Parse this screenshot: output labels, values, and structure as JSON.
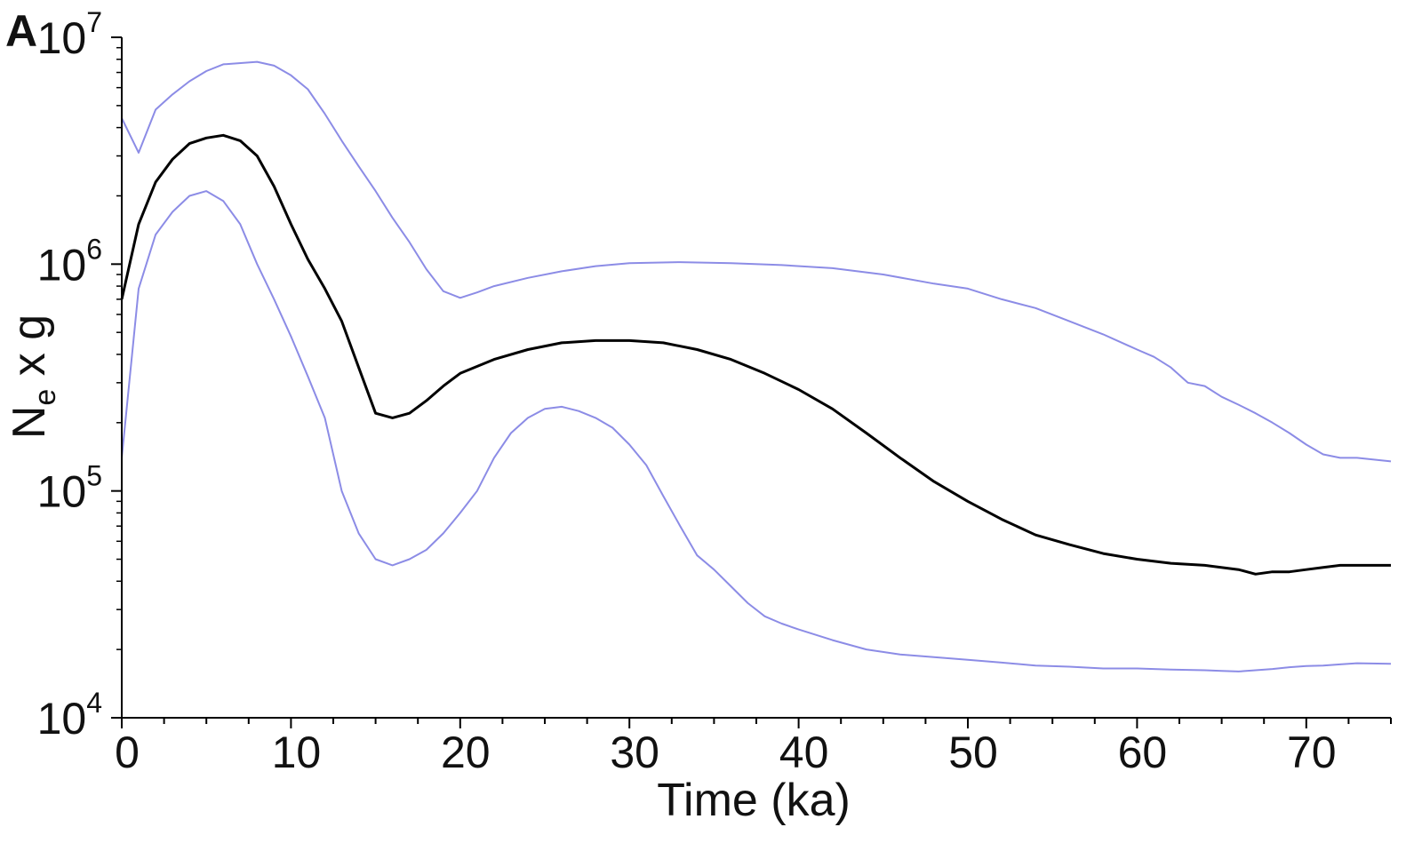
{
  "chart_data": {
    "type": "line",
    "panel_label": "A",
    "xlabel": "Time (ka)",
    "ylabel": {
      "base": "N",
      "subscript": "e",
      "rest": " x g"
    },
    "yscale": "log",
    "xlim": [
      0,
      75
    ],
    "ylim": [
      10000,
      10000000
    ],
    "x_ticks": [
      {
        "value": 0,
        "label": "0"
      },
      {
        "value": 10,
        "label": "10"
      },
      {
        "value": 20,
        "label": "20"
      },
      {
        "value": 30,
        "label": "30"
      },
      {
        "value": 40,
        "label": "40"
      },
      {
        "value": 50,
        "label": "50"
      },
      {
        "value": 60,
        "label": "60"
      },
      {
        "value": 70,
        "label": "70"
      }
    ],
    "y_ticks": [
      {
        "value": 10000,
        "base": "10",
        "exp": "4"
      },
      {
        "value": 100000,
        "base": "10",
        "exp": "5"
      },
      {
        "value": 1000000,
        "base": "10",
        "exp": "6"
      },
      {
        "value": 10000000,
        "base": "10",
        "exp": "7"
      }
    ],
    "series": [
      {
        "name": "upper bound",
        "color": "#8c8ce6",
        "points": [
          [
            0,
            4400000
          ],
          [
            1,
            3100000
          ],
          [
            2,
            4800000
          ],
          [
            3,
            5600000
          ],
          [
            4,
            6400000
          ],
          [
            5,
            7100000
          ],
          [
            6,
            7600000
          ],
          [
            8,
            7800000
          ],
          [
            9,
            7500000
          ],
          [
            10,
            6800000
          ],
          [
            11,
            5900000
          ],
          [
            12,
            4600000
          ],
          [
            13,
            3500000
          ],
          [
            14,
            2700000
          ],
          [
            15,
            2100000
          ],
          [
            16,
            1600000
          ],
          [
            17,
            1250000
          ],
          [
            18,
            950000
          ],
          [
            19,
            760000
          ],
          [
            20,
            710000
          ],
          [
            21,
            750000
          ],
          [
            22,
            800000
          ],
          [
            24,
            870000
          ],
          [
            26,
            930000
          ],
          [
            28,
            980000
          ],
          [
            30,
            1010000
          ],
          [
            33,
            1020000
          ],
          [
            36,
            1010000
          ],
          [
            39,
            990000
          ],
          [
            42,
            960000
          ],
          [
            45,
            900000
          ],
          [
            48,
            820000
          ],
          [
            50,
            780000
          ],
          [
            52,
            700000
          ],
          [
            54,
            640000
          ],
          [
            56,
            560000
          ],
          [
            58,
            490000
          ],
          [
            60,
            420000
          ],
          [
            61,
            390000
          ],
          [
            62,
            350000
          ],
          [
            63,
            300000
          ],
          [
            64,
            290000
          ],
          [
            65,
            260000
          ],
          [
            66,
            240000
          ],
          [
            67,
            220000
          ],
          [
            68,
            200000
          ],
          [
            69,
            180000
          ],
          [
            70,
            160000
          ],
          [
            71,
            145000
          ],
          [
            72,
            140000
          ],
          [
            73,
            140000
          ],
          [
            75,
            135000
          ]
        ]
      },
      {
        "name": "median",
        "color": "#000000",
        "points": [
          [
            0,
            700000
          ],
          [
            1,
            1500000
          ],
          [
            2,
            2300000
          ],
          [
            3,
            2900000
          ],
          [
            4,
            3400000
          ],
          [
            5,
            3600000
          ],
          [
            6,
            3700000
          ],
          [
            7,
            3500000
          ],
          [
            8,
            3000000
          ],
          [
            9,
            2200000
          ],
          [
            10,
            1500000
          ],
          [
            11,
            1050000
          ],
          [
            12,
            780000
          ],
          [
            13,
            560000
          ],
          [
            14,
            350000
          ],
          [
            15,
            220000
          ],
          [
            16,
            210000
          ],
          [
            17,
            220000
          ],
          [
            18,
            250000
          ],
          [
            19,
            290000
          ],
          [
            20,
            330000
          ],
          [
            22,
            380000
          ],
          [
            24,
            420000
          ],
          [
            26,
            450000
          ],
          [
            28,
            460000
          ],
          [
            30,
            460000
          ],
          [
            32,
            450000
          ],
          [
            34,
            420000
          ],
          [
            36,
            380000
          ],
          [
            38,
            330000
          ],
          [
            40,
            280000
          ],
          [
            42,
            230000
          ],
          [
            44,
            180000
          ],
          [
            46,
            140000
          ],
          [
            48,
            110000
          ],
          [
            50,
            90000
          ],
          [
            52,
            75000
          ],
          [
            54,
            64000
          ],
          [
            56,
            58000
          ],
          [
            58,
            53000
          ],
          [
            60,
            50000
          ],
          [
            62,
            48000
          ],
          [
            64,
            47000
          ],
          [
            66,
            45000
          ],
          [
            67,
            43000
          ],
          [
            68,
            44000
          ],
          [
            69,
            44000
          ],
          [
            70,
            45000
          ],
          [
            71,
            46000
          ],
          [
            72,
            47000
          ],
          [
            75,
            47000
          ]
        ]
      },
      {
        "name": "lower bound",
        "color": "#8c8ce6",
        "points": [
          [
            0,
            140000
          ],
          [
            1,
            780000
          ],
          [
            2,
            1350000
          ],
          [
            3,
            1700000
          ],
          [
            4,
            2000000
          ],
          [
            5,
            2100000
          ],
          [
            6,
            1900000
          ],
          [
            7,
            1500000
          ],
          [
            8,
            1000000
          ],
          [
            9,
            700000
          ],
          [
            10,
            480000
          ],
          [
            11,
            320000
          ],
          [
            12,
            210000
          ],
          [
            13,
            100000
          ],
          [
            14,
            65000
          ],
          [
            15,
            50000
          ],
          [
            16,
            47000
          ],
          [
            17,
            50000
          ],
          [
            18,
            55000
          ],
          [
            19,
            65000
          ],
          [
            20,
            80000
          ],
          [
            21,
            100000
          ],
          [
            22,
            140000
          ],
          [
            23,
            180000
          ],
          [
            24,
            210000
          ],
          [
            25,
            230000
          ],
          [
            26,
            235000
          ],
          [
            27,
            225000
          ],
          [
            28,
            210000
          ],
          [
            29,
            190000
          ],
          [
            30,
            160000
          ],
          [
            31,
            130000
          ],
          [
            32,
            95000
          ],
          [
            33,
            70000
          ],
          [
            34,
            52000
          ],
          [
            35,
            45000
          ],
          [
            36,
            38000
          ],
          [
            37,
            32000
          ],
          [
            38,
            28000
          ],
          [
            39,
            26000
          ],
          [
            40,
            24500
          ],
          [
            42,
            22000
          ],
          [
            44,
            20000
          ],
          [
            46,
            19000
          ],
          [
            48,
            18500
          ],
          [
            50,
            18000
          ],
          [
            52,
            17500
          ],
          [
            54,
            17000
          ],
          [
            56,
            16800
          ],
          [
            58,
            16500
          ],
          [
            60,
            16500
          ],
          [
            62,
            16300
          ],
          [
            64,
            16200
          ],
          [
            65,
            16100
          ],
          [
            66,
            16000
          ],
          [
            67,
            16200
          ],
          [
            68,
            16400
          ],
          [
            69,
            16700
          ],
          [
            70,
            16900
          ],
          [
            71,
            17000
          ],
          [
            72,
            17200
          ],
          [
            73,
            17400
          ],
          [
            75,
            17300
          ]
        ]
      }
    ]
  }
}
